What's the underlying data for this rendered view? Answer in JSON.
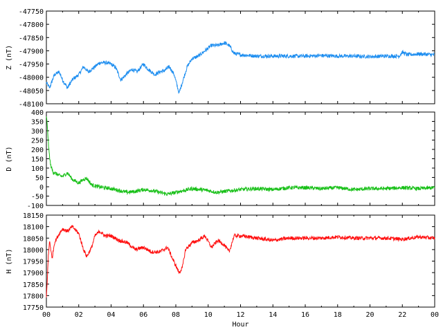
{
  "chart_data": [
    {
      "type": "line",
      "ylabel": "Z (nT)",
      "xlabel": "",
      "ylim": [
        -48100,
        -47750
      ],
      "yticks": [
        -47750,
        -47800,
        -47850,
        -47900,
        -47950,
        -48000,
        -48050,
        -48100
      ],
      "color": "#1e8ef0",
      "x": [
        0,
        0.2,
        0.5,
        0.8,
        1.0,
        1.3,
        1.6,
        2.0,
        2.3,
        2.6,
        3.0,
        3.3,
        3.7,
        4.0,
        4.3,
        4.6,
        5.0,
        5.3,
        5.6,
        6.0,
        6.3,
        6.7,
        7.0,
        7.3,
        7.6,
        7.9,
        8.2,
        8.4,
        8.7,
        9.0,
        9.4,
        9.8,
        10.2,
        10.6,
        11.0,
        11.3,
        11.6,
        12.0,
        13,
        14,
        15,
        16,
        17,
        18,
        19,
        20,
        21,
        21.8,
        22.0,
        22.3,
        23,
        24
      ],
      "values": [
        -48020,
        -48040,
        -47990,
        -47980,
        -48010,
        -48040,
        -48010,
        -47990,
        -47960,
        -47980,
        -47960,
        -47945,
        -47945,
        -47950,
        -47965,
        -48010,
        -47985,
        -47970,
        -47980,
        -47950,
        -47970,
        -47990,
        -47980,
        -47975,
        -47960,
        -47990,
        -48060,
        -48020,
        -47960,
        -47930,
        -47920,
        -47900,
        -47880,
        -47880,
        -47870,
        -47880,
        -47910,
        -47915,
        -47920,
        -47920,
        -47920,
        -47920,
        -47918,
        -47920,
        -47920,
        -47922,
        -47920,
        -47920,
        -47905,
        -47915,
        -47912,
        -47915
      ]
    },
    {
      "type": "line",
      "ylabel": "D (nT)",
      "xlabel": "",
      "ylim": [
        -100,
        400
      ],
      "yticks": [
        400,
        350,
        300,
        250,
        200,
        150,
        100,
        50,
        0,
        -50,
        -100
      ],
      "color": "#18c018",
      "x": [
        0,
        0.08,
        0.15,
        0.25,
        0.4,
        0.6,
        0.8,
        1.0,
        1.3,
        1.6,
        2.0,
        2.3,
        2.5,
        2.8,
        3.2,
        3.6,
        4.0,
        4.5,
        5.0,
        5.5,
        6.0,
        6.5,
        7.0,
        7.5,
        8.0,
        8.5,
        9.0,
        9.5,
        10.0,
        10.5,
        11.0,
        11.5,
        12,
        13,
        14,
        15,
        16,
        17,
        18,
        19,
        20,
        21,
        22,
        23,
        24
      ],
      "values": [
        380,
        300,
        200,
        120,
        80,
        70,
        60,
        55,
        75,
        40,
        20,
        40,
        45,
        10,
        0,
        -5,
        -10,
        -20,
        -30,
        -25,
        -15,
        -20,
        -30,
        -40,
        -30,
        -20,
        -10,
        -15,
        -20,
        -30,
        -25,
        -20,
        -15,
        -10,
        -15,
        -5,
        -5,
        -10,
        -5,
        -15,
        -10,
        -10,
        -5,
        -10,
        -5
      ]
    },
    {
      "type": "line",
      "ylabel": "H (nT)",
      "xlabel": "Hour",
      "ylim": [
        17750,
        18150
      ],
      "yticks": [
        18150,
        18100,
        18050,
        18000,
        17950,
        17900,
        17850,
        17800,
        17750
      ],
      "color": "#ff1010",
      "xticks": [
        "00",
        "02",
        "04",
        "06",
        "08",
        "10",
        "12",
        "14",
        "16",
        "18",
        "20",
        "22",
        "00"
      ],
      "x": [
        0,
        0.05,
        0.12,
        0.2,
        0.35,
        0.5,
        0.8,
        1.0,
        1.3,
        1.6,
        2.0,
        2.3,
        2.5,
        2.8,
        3.0,
        3.3,
        3.6,
        4.0,
        4.5,
        5.0,
        5.5,
        6.0,
        6.5,
        7.0,
        7.5,
        7.8,
        8.0,
        8.2,
        8.4,
        8.6,
        9.0,
        9.4,
        9.8,
        10.2,
        10.6,
        11.0,
        11.3,
        11.6,
        12,
        13,
        14,
        15,
        16,
        17,
        18,
        19,
        20,
        21,
        22,
        23,
        24
      ],
      "values": [
        17790,
        17860,
        17970,
        18040,
        17960,
        18030,
        18070,
        18090,
        18080,
        18100,
        18070,
        18000,
        17970,
        18010,
        18060,
        18080,
        18060,
        18060,
        18040,
        18030,
        18000,
        18010,
        17990,
        17990,
        18010,
        17960,
        17930,
        17900,
        17920,
        18000,
        18030,
        18040,
        18060,
        18010,
        18040,
        18020,
        17990,
        18060,
        18060,
        18050,
        18040,
        18050,
        18050,
        18050,
        18055,
        18050,
        18050,
        18050,
        18045,
        18055,
        18050
      ]
    }
  ]
}
